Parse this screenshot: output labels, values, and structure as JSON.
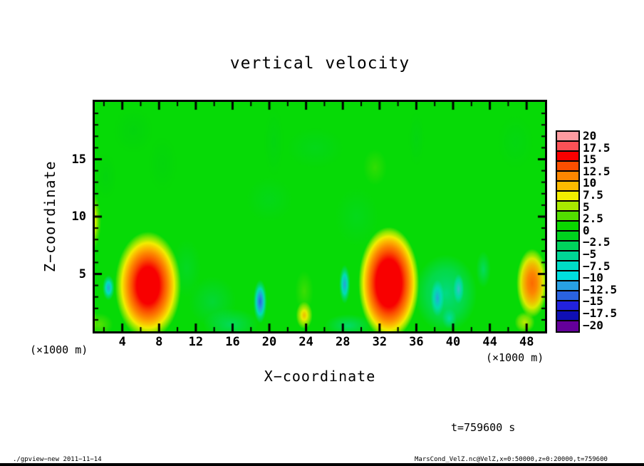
{
  "title": "vertical velocity",
  "axes": {
    "x": {
      "label": "X−coordinate",
      "unit": "(×1000 m)",
      "tick_values": [
        4,
        8,
        12,
        16,
        20,
        24,
        28,
        32,
        36,
        40,
        44,
        48
      ],
      "minor_step": 2,
      "range": [
        1,
        50
      ]
    },
    "z": {
      "label": "Z−coordinate",
      "tick_values": [
        15,
        10,
        5
      ],
      "minor_step": 1,
      "range": [
        0,
        20
      ]
    }
  },
  "annotations": {
    "time": "t=759600 s"
  },
  "footer": {
    "left": "./gpview−new  2011−11−14",
    "right": "MarsCond_VelZ.nc@VelZ,x=0:50000,z=0:20000,t=759600"
  },
  "colorbar": {
    "labels": [
      "20",
      "17.5",
      "15",
      "12.5",
      "10",
      "7.5",
      "5",
      "2.5",
      "0",
      "−2.5",
      "−5",
      "−7.5",
      "−10",
      "−12.5",
      "−15",
      "−17.5",
      "−20"
    ],
    "cells": [
      "#ff9ba0",
      "#fb5156",
      "#f80000",
      "#fb4e00",
      "#fd8600",
      "#fcba00",
      "#f2ee00",
      "#a8ea00",
      "#52dd00",
      "#0ad800",
      "#00d31e",
      "#00d25c",
      "#00d795",
      "#00dcc6",
      "#00dede",
      "#28a0e3",
      "#2a62e0",
      "#2222dd",
      "#0f0fb4",
      "#64009b"
    ]
  },
  "chart_data": {
    "type": "heatmap",
    "title": "vertical velocity",
    "xlabel": "X−coordinate (×1000 m)",
    "ylabel": "Z−coordinate (×1000 m)",
    "xlim": [
      1,
      50
    ],
    "zlim": [
      0,
      20
    ],
    "value_range": [
      -20,
      20
    ],
    "contour_interval": 2.5,
    "time_s": 759600,
    "background_value": 0.5,
    "background_color": "#06da06",
    "features": [
      {
        "name": "texture-dark-green-1",
        "x": 5.2,
        "z": 17.5,
        "rx": 2.2,
        "rz": 2.0,
        "peak": -1,
        "stops": [
          [
            0,
            "rgba(0,200,30,0.30)"
          ],
          [
            1,
            "rgba(0,200,30,0)"
          ]
        ]
      },
      {
        "name": "texture-dark-green-2",
        "x": 8.4,
        "z": 14.6,
        "rx": 1.6,
        "rz": 2.4,
        "peak": -1,
        "stops": [
          [
            0,
            "rgba(0,200,30,0.25)"
          ],
          [
            1,
            "rgba(0,200,30,0)"
          ]
        ]
      },
      {
        "name": "texture-dark-green-3",
        "x": 2.2,
        "z": 13.5,
        "rx": 1.2,
        "rz": 2.0,
        "peak": -1,
        "stops": [
          [
            0,
            "rgba(0,200,30,0.30)"
          ],
          [
            1,
            "rgba(0,200,30,0)"
          ]
        ]
      },
      {
        "name": "texture-streak-top-1",
        "x": 20.5,
        "z": 16.5,
        "rx": 1.1,
        "rz": 3.0,
        "peak": -1,
        "stops": [
          [
            0,
            "rgba(0,205,40,0.30)"
          ],
          [
            1,
            "rgba(0,205,40,0)"
          ]
        ]
      },
      {
        "name": "texture-teal-top",
        "x": 25.0,
        "z": 16.0,
        "rx": 3.2,
        "rz": 1.8,
        "peak": -1,
        "stops": [
          [
            0,
            "rgba(0,208,90,0.22)"
          ],
          [
            1,
            "rgba(0,208,90,0)"
          ]
        ]
      },
      {
        "name": "texture-yellowgreen-patch",
        "x": 31.5,
        "z": 14.3,
        "rx": 1.3,
        "rz": 1.6,
        "peak": 2,
        "stops": [
          [
            0,
            "rgba(130,228,0,0.35)"
          ],
          [
            1,
            "rgba(130,228,0,0)"
          ]
        ]
      },
      {
        "name": "texture-streak-top-2",
        "x": 36.0,
        "z": 16.8,
        "rx": 0.9,
        "rz": 2.4,
        "peak": -1,
        "stops": [
          [
            0,
            "rgba(0,205,45,0.28)"
          ],
          [
            1,
            "rgba(0,205,45,0)"
          ]
        ]
      },
      {
        "name": "texture-dark-green-4",
        "x": 46.8,
        "z": 16.5,
        "rx": 2.0,
        "rz": 2.4,
        "peak": -1,
        "stops": [
          [
            0,
            "rgba(0,206,60,0.22)"
          ],
          [
            1,
            "rgba(0,206,60,0)"
          ]
        ]
      },
      {
        "name": "texture-teal-mid-1",
        "x": 20.0,
        "z": 11.5,
        "rx": 2.6,
        "rz": 2.0,
        "peak": -1,
        "stops": [
          [
            0,
            "rgba(0,210,110,0.18)"
          ],
          [
            1,
            "rgba(0,210,110,0)"
          ]
        ]
      },
      {
        "name": "texture-teal-mid-2",
        "x": 29.5,
        "z": 10.0,
        "rx": 2.4,
        "rz": 2.6,
        "peak": -1,
        "stops": [
          [
            0,
            "rgba(0,212,120,0.18)"
          ],
          [
            1,
            "rgba(0,212,120,0)"
          ]
        ]
      },
      {
        "name": "teal-patch-bottom-left",
        "x": 13.8,
        "z": 2.6,
        "rx": 2.6,
        "rz": 2.2,
        "peak": -2.5,
        "stops": [
          [
            0,
            "rgba(0,212,140,0.35)"
          ],
          [
            1,
            "rgba(0,212,140,0)"
          ]
        ]
      },
      {
        "name": "cyan-patch-bottom-1",
        "x": 15.8,
        "z": 0.6,
        "rx": 3.0,
        "rz": 1.4,
        "peak": -4,
        "stops": [
          [
            0,
            "rgba(0,220,190,0.45)"
          ],
          [
            1,
            "rgba(0,220,190,0)"
          ]
        ]
      },
      {
        "name": "cyan-patch-bottom-2",
        "x": 28.6,
        "z": 0.5,
        "rx": 2.6,
        "rz": 1.0,
        "peak": -4,
        "stops": [
          [
            0,
            "rgba(0,220,198,0.50)"
          ],
          [
            1,
            "rgba(0,220,198,0)"
          ]
        ]
      },
      {
        "name": "teal-wisp-left",
        "x": 11.0,
        "z": 5.5,
        "rx": 1.6,
        "rz": 2.6,
        "peak": -2,
        "stops": [
          [
            0,
            "rgba(0,214,125,0.25)"
          ],
          [
            1,
            "rgba(0,214,125,0)"
          ]
        ]
      },
      {
        "name": "cyan-wisp-right",
        "x": 43.3,
        "z": 5.4,
        "rx": 0.8,
        "rz": 1.6,
        "peak": -3,
        "stops": [
          [
            0,
            "rgba(0,222,222,0.40)"
          ],
          [
            1,
            "rgba(0,222,222,0)"
          ]
        ]
      },
      {
        "name": "yellowgreen-tinge-mid",
        "x": 23.8,
        "z": 3.5,
        "rx": 1.0,
        "rz": 1.8,
        "peak": 3,
        "stops": [
          [
            0,
            "rgba(160,230,0,0.35)"
          ],
          [
            1,
            "rgba(160,230,0,0)"
          ]
        ]
      },
      {
        "name": "chartreuse-left-edge",
        "x": 0.4,
        "z": 6.5,
        "rx": 0.6,
        "rz": 2.2,
        "peak": 4,
        "stops": [
          [
            0,
            "rgba(168,234,0,0.70)"
          ],
          [
            1,
            "rgba(168,234,0,0)"
          ]
        ]
      },
      {
        "name": "chartreuse-bottom-corner",
        "x": 1.5,
        "z": 0.6,
        "rx": 1.5,
        "rz": 1.0,
        "peak": 4,
        "stops": [
          [
            0,
            "rgba(168,234,0,0.50)"
          ],
          [
            1,
            "rgba(168,234,0,0)"
          ]
        ]
      },
      {
        "name": "cool-base-x39",
        "x": 39.2,
        "z": 3.3,
        "rx": 3.4,
        "rz": 3.4,
        "peak": -5,
        "stops": [
          [
            0,
            "rgba(0,220,195,0.65)"
          ],
          [
            0.6,
            "rgba(0,218,170,0.40)"
          ],
          [
            1,
            "rgba(0,218,170,0)"
          ]
        ]
      },
      {
        "name": "warm-blob-left-edge",
        "x": 0.6,
        "z": 9.6,
        "rx": 1.1,
        "rz": 2.6,
        "peak": 10,
        "stops": [
          [
            0,
            "#fd8600"
          ],
          [
            0.3,
            "#f2ee00"
          ],
          [
            0.55,
            "#a8ea00"
          ],
          [
            0.78,
            "rgba(82,221,0,0.8)"
          ],
          [
            1,
            "rgba(82,221,0,0)"
          ]
        ]
      },
      {
        "name": "warm-corner-bottom-left",
        "x": 0.4,
        "z": 0.9,
        "rx": 0.8,
        "rz": 1.5,
        "peak": 9,
        "stops": [
          [
            0,
            "rgba(253,134,0,0.95)"
          ],
          [
            0.4,
            "rgba(242,238,0,0.90)"
          ],
          [
            0.7,
            "rgba(168,234,0,0.60)"
          ],
          [
            1,
            "rgba(168,234,0,0)"
          ]
        ]
      },
      {
        "name": "blue-blob-x2",
        "x": 2.5,
        "z": 3.8,
        "rx": 0.65,
        "rz": 1.1,
        "peak": -8,
        "stops": [
          [
            0,
            "rgba(45,160,227,0.95)"
          ],
          [
            0.45,
            "rgba(0,222,222,0.85)"
          ],
          [
            0.75,
            "rgba(0,216,160,0.50)"
          ],
          [
            1,
            "rgba(0,216,160,0)"
          ]
        ]
      },
      {
        "name": "red-blob-x6",
        "x": 6.8,
        "z": 4.0,
        "rx": 3.6,
        "rz": 4.7,
        "peak": 15,
        "stops": [
          [
            0,
            "#f80000"
          ],
          [
            0.34,
            "#f80000"
          ],
          [
            0.48,
            "#fb4e00"
          ],
          [
            0.6,
            "#fd8600"
          ],
          [
            0.7,
            "#fcba00"
          ],
          [
            0.79,
            "#f2ee00"
          ],
          [
            0.88,
            "rgba(168,234,0,0.85)"
          ],
          [
            1,
            "rgba(168,234,0,0)"
          ]
        ]
      },
      {
        "name": "blue-streak-x19",
        "x": 19.0,
        "z": 2.6,
        "rx": 0.75,
        "rz": 1.9,
        "peak": -12,
        "stops": [
          [
            0,
            "rgba(42,98,224,1)"
          ],
          [
            0.35,
            "rgba(40,160,227,0.95)"
          ],
          [
            0.6,
            "rgba(0,222,222,0.80)"
          ],
          [
            0.82,
            "rgba(0,216,150,0.45)"
          ],
          [
            1,
            "rgba(0,216,150,0)"
          ]
        ]
      },
      {
        "name": "yellow-blob-x24",
        "x": 23.8,
        "z": 1.4,
        "rx": 0.9,
        "rz": 1.2,
        "peak": 8,
        "stops": [
          [
            0,
            "rgba(252,186,0,0.95)"
          ],
          [
            0.35,
            "rgba(242,238,0,0.95)"
          ],
          [
            0.7,
            "rgba(168,234,0,0.70)"
          ],
          [
            1,
            "rgba(168,234,0,0)"
          ]
        ]
      },
      {
        "name": "blue-streak-x28",
        "x": 28.2,
        "z": 4.1,
        "rx": 0.6,
        "rz": 1.7,
        "peak": -10,
        "stops": [
          [
            0,
            "rgba(40,160,227,0.95)"
          ],
          [
            0.5,
            "rgba(0,222,222,0.80)"
          ],
          [
            0.78,
            "rgba(0,216,150,0.45)"
          ],
          [
            1,
            "rgba(0,216,150,0)"
          ]
        ]
      },
      {
        "name": "red-blob-x33",
        "x": 33.0,
        "z": 4.2,
        "rx": 3.3,
        "rz": 4.9,
        "peak": 17,
        "stops": [
          [
            0,
            "#f80000"
          ],
          [
            0.42,
            "#f80000"
          ],
          [
            0.55,
            "#fb4e00"
          ],
          [
            0.66,
            "#fd8600"
          ],
          [
            0.75,
            "#fcba00"
          ],
          [
            0.83,
            "#f2ee00"
          ],
          [
            0.91,
            "rgba(168,234,0,0.85)"
          ],
          [
            1,
            "rgba(168,234,0,0)"
          ]
        ]
      },
      {
        "name": "blue-lobe-x38",
        "x": 38.3,
        "z": 2.9,
        "rx": 0.75,
        "rz": 1.6,
        "peak": -10,
        "stops": [
          [
            0,
            "rgba(45,158,226,0.90)"
          ],
          [
            0.55,
            "rgba(0,222,222,0.60)"
          ],
          [
            1,
            "rgba(0,222,222,0)"
          ]
        ]
      },
      {
        "name": "blue-lobe-x40",
        "x": 40.6,
        "z": 3.7,
        "rx": 0.6,
        "rz": 1.3,
        "peak": -8,
        "stops": [
          [
            0,
            "rgba(80,180,232,0.80)"
          ],
          [
            0.6,
            "rgba(0,222,222,0.50)"
          ],
          [
            1,
            "rgba(0,222,222,0)"
          ]
        ]
      },
      {
        "name": "cyan-lobe-x39-low",
        "x": 39.6,
        "z": 1.1,
        "rx": 0.8,
        "rz": 0.9,
        "peak": -5,
        "stops": [
          [
            0,
            "rgba(0,222,222,0.60)"
          ],
          [
            1,
            "rgba(0,222,222,0)"
          ]
        ]
      },
      {
        "name": "orange-blob-x48",
        "x": 48.6,
        "z": 4.2,
        "rx": 1.7,
        "rz": 3.0,
        "peak": 11,
        "stops": [
          [
            0,
            "rgba(252,106,0,1)"
          ],
          [
            0.3,
            "rgba(253,134,0,1)"
          ],
          [
            0.55,
            "rgba(252,186,0,0.95)"
          ],
          [
            0.72,
            "rgba(242,238,0,0.90)"
          ],
          [
            0.86,
            "rgba(168,234,0,0.70)"
          ],
          [
            1,
            "rgba(168,234,0,0)"
          ]
        ]
      },
      {
        "name": "yellow-wisp-x48-bottom",
        "x": 47.8,
        "z": 0.8,
        "rx": 1.1,
        "rz": 0.9,
        "peak": 6,
        "stops": [
          [
            0,
            "rgba(242,238,0,0.80)"
          ],
          [
            0.6,
            "rgba(168,234,0,0.60)"
          ],
          [
            1,
            "rgba(168,234,0,0)"
          ]
        ]
      }
    ]
  }
}
